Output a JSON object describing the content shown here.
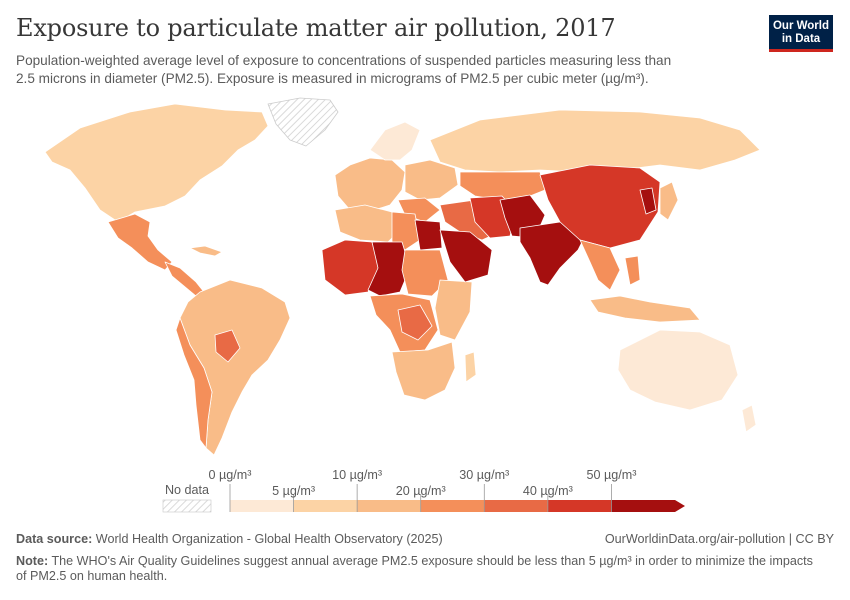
{
  "header": {
    "title": "Exposure to particulate matter air pollution, 2017",
    "subtitle_line1": "Population-weighted average level of exposure to concentrations of suspended particles measuring less than",
    "subtitle_line2": "2.5 microns in diameter (PM2.5). Exposure is measured in micrograms of PM2.5 per cubic meter (µg/m³)."
  },
  "logo": {
    "line1": "Our World",
    "line2": "in Data"
  },
  "legend": {
    "no_data_label": "No data",
    "upper_ticks": [
      "0 µg/m³",
      "10 µg/m³",
      "30 µg/m³",
      "50 µg/m³"
    ],
    "lower_ticks": [
      "5 µg/m³",
      "20 µg/m³",
      "40 µg/m³"
    ],
    "bins": [
      {
        "range": "0–5",
        "color": "#fde9d6"
      },
      {
        "range": "5–10",
        "color": "#fcd3a5"
      },
      {
        "range": "10–20",
        "color": "#f9bc88"
      },
      {
        "range": "20–30",
        "color": "#f48f5a"
      },
      {
        "range": "30–40",
        "color": "#e86a45"
      },
      {
        "range": "40–50",
        "color": "#d53727"
      },
      {
        "range": "50+",
        "color": "#a50f0f"
      }
    ]
  },
  "map": {
    "colors": {
      "very_low": "#fde9d6",
      "low": "#fcd3a5",
      "mid_low": "#f9bc88",
      "mid": "#f48f5a",
      "mid_high": "#e86a45",
      "high": "#d53727",
      "very_high": "#a50f0f",
      "no_data_stroke": "#cccccc"
    }
  },
  "footer": {
    "source_label": "Data source:",
    "source_text": "World Health Organization - Global Health Observatory (2025)",
    "url": "OurWorldinData.org/air-pollution | CC BY",
    "note_label": "Note:",
    "note_text": "The WHO's Air Quality Guidelines suggest annual average PM2.5 exposure should be less than 5 µg/m³ in order to minimize the impacts of PM2.5 on human health."
  }
}
